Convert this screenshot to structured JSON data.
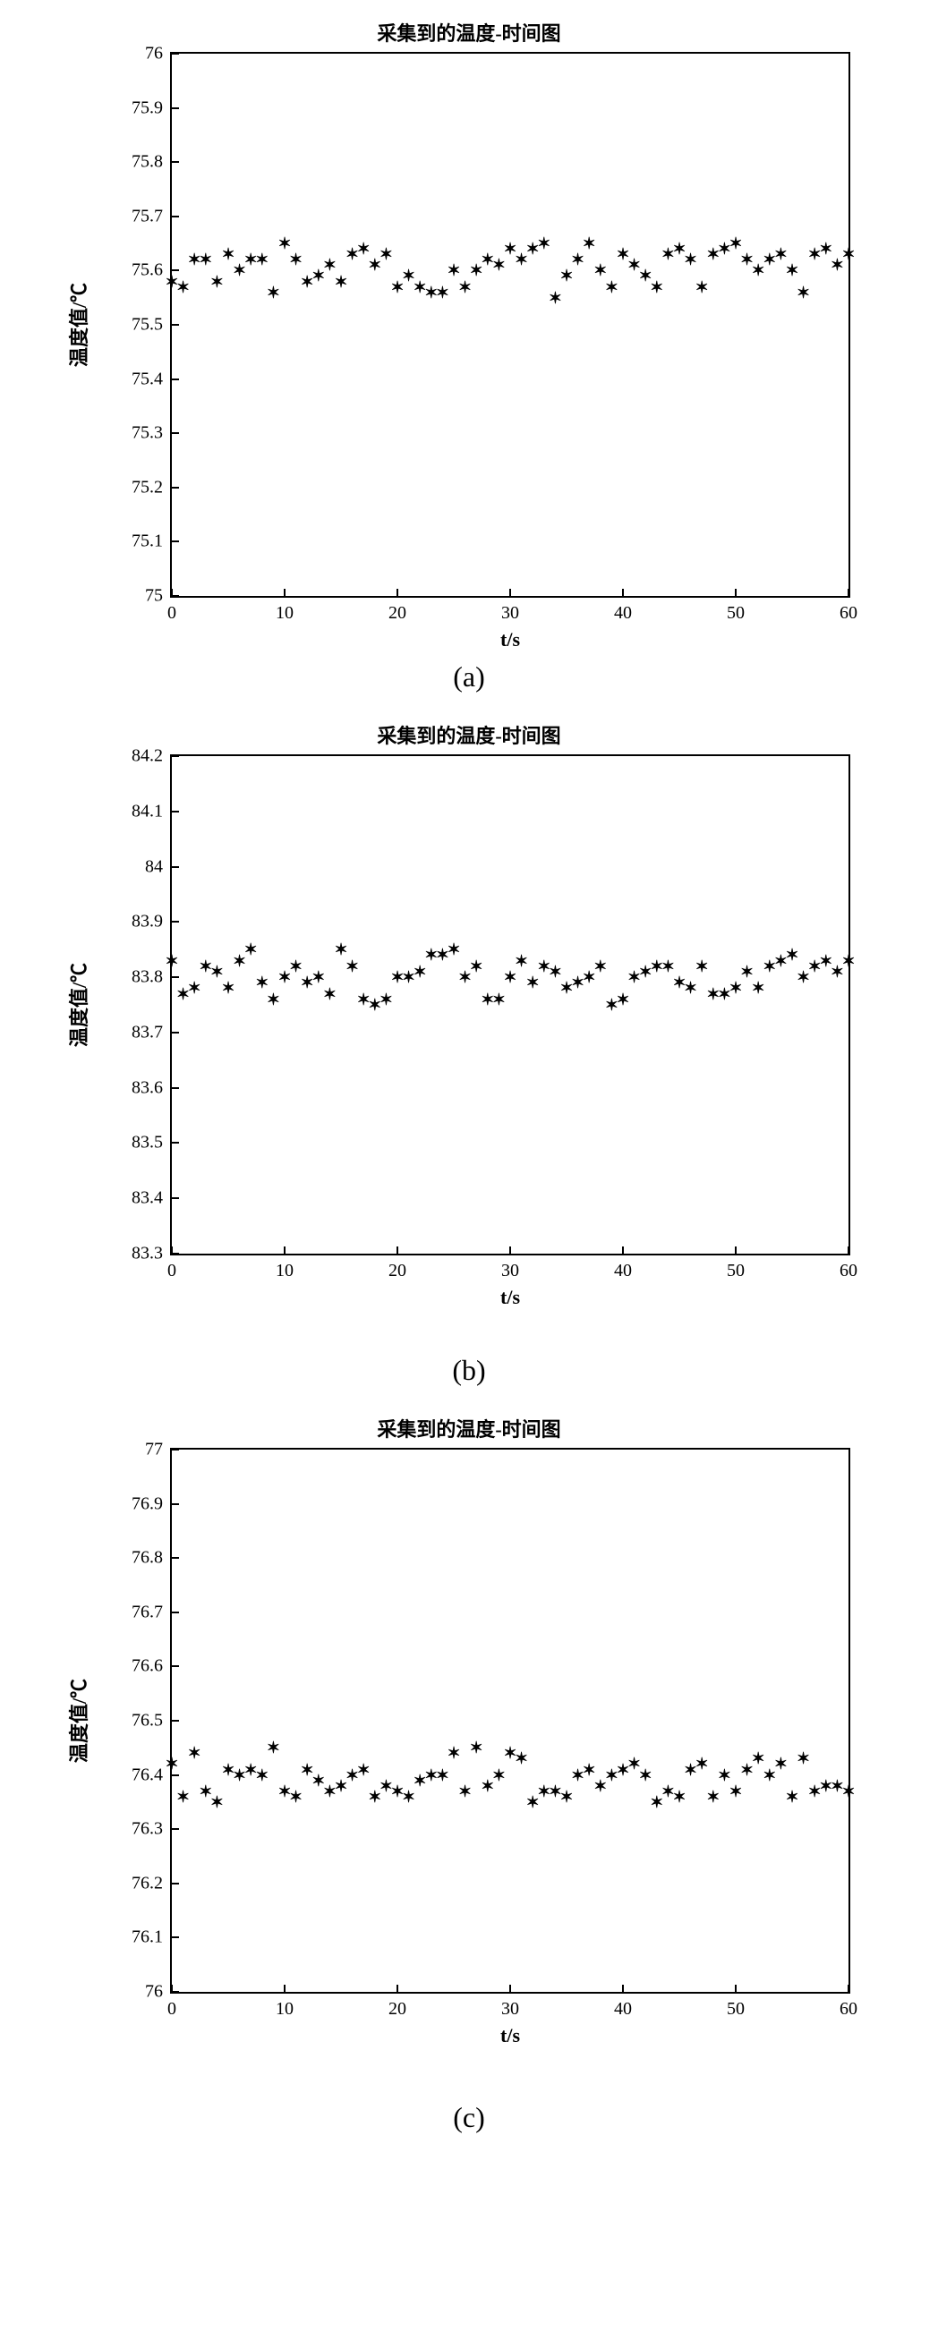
{
  "marker_glyph": "✶",
  "marker_color": "#000000",
  "background_color": "#ffffff",
  "axis_color": "#000000",
  "title_fontsize": 22,
  "tick_fontsize": 20,
  "label_fontsize": 22,
  "sublabel_fontsize": 32,
  "charts": [
    {
      "id": "a",
      "type": "scatter",
      "title": "采集到的温度-时间图",
      "xlabel": "t/s",
      "ylabel": "温度值/℃",
      "xlim": [
        0,
        60
      ],
      "ylim": [
        75,
        76
      ],
      "xticks": [
        0,
        10,
        20,
        30,
        40,
        50,
        60
      ],
      "yticks": [
        75,
        75.1,
        75.2,
        75.3,
        75.4,
        75.5,
        75.6,
        75.7,
        75.8,
        75.9,
        76
      ],
      "frame_w": 760,
      "frame_h": 610,
      "sub": "(a)",
      "x": [
        0,
        1,
        2,
        3,
        4,
        5,
        6,
        7,
        8,
        9,
        10,
        11,
        12,
        13,
        14,
        15,
        16,
        17,
        18,
        19,
        20,
        21,
        22,
        23,
        24,
        25,
        26,
        27,
        28,
        29,
        30,
        31,
        32,
        33,
        34,
        35,
        36,
        37,
        38,
        39,
        40,
        41,
        42,
        43,
        44,
        45,
        46,
        47,
        48,
        49,
        50,
        51,
        52,
        53,
        54,
        55,
        56,
        57,
        58,
        59,
        60
      ],
      "y": [
        75.58,
        75.57,
        75.62,
        75.62,
        75.58,
        75.63,
        75.6,
        75.62,
        75.62,
        75.56,
        75.65,
        75.62,
        75.58,
        75.59,
        75.61,
        75.58,
        75.63,
        75.64,
        75.61,
        75.63,
        75.57,
        75.59,
        75.57,
        75.56,
        75.56,
        75.6,
        75.57,
        75.6,
        75.62,
        75.61,
        75.64,
        75.62,
        75.64,
        75.65,
        75.55,
        75.59,
        75.62,
        75.65,
        75.6,
        75.57,
        75.63,
        75.61,
        75.59,
        75.57,
        75.63,
        75.64,
        75.62,
        75.57,
        75.63,
        75.64,
        75.65,
        75.62,
        75.6,
        75.62,
        75.63,
        75.6,
        75.56,
        75.63,
        75.64,
        75.61,
        75.63
      ]
    },
    {
      "id": "b",
      "type": "scatter",
      "title": "采集到的温度-时间图",
      "xlabel": "t/s",
      "ylabel": "温度值/℃",
      "xlim": [
        0,
        60
      ],
      "ylim": [
        83.3,
        84.2
      ],
      "xticks": [
        0,
        10,
        20,
        30,
        40,
        50,
        60
      ],
      "yticks": [
        83.3,
        83.4,
        83.5,
        83.6,
        83.7,
        83.8,
        83.9,
        84,
        84.1,
        84.2
      ],
      "frame_w": 760,
      "frame_h": 560,
      "sub": "(b)",
      "x": [
        0,
        1,
        2,
        3,
        4,
        5,
        6,
        7,
        8,
        9,
        10,
        11,
        12,
        13,
        14,
        15,
        16,
        17,
        18,
        19,
        20,
        21,
        22,
        23,
        24,
        25,
        26,
        27,
        28,
        29,
        30,
        31,
        32,
        33,
        34,
        35,
        36,
        37,
        38,
        39,
        40,
        41,
        42,
        43,
        44,
        45,
        46,
        47,
        48,
        49,
        50,
        51,
        52,
        53,
        54,
        55,
        56,
        57,
        58,
        59,
        60
      ],
      "y": [
        83.83,
        83.77,
        83.78,
        83.82,
        83.81,
        83.78,
        83.83,
        83.85,
        83.79,
        83.76,
        83.8,
        83.82,
        83.79,
        83.8,
        83.77,
        83.85,
        83.82,
        83.76,
        83.75,
        83.76,
        83.8,
        83.8,
        83.81,
        83.84,
        83.84,
        83.85,
        83.8,
        83.82,
        83.76,
        83.76,
        83.8,
        83.83,
        83.79,
        83.82,
        83.81,
        83.78,
        83.79,
        83.8,
        83.82,
        83.75,
        83.76,
        83.8,
        83.81,
        83.82,
        83.82,
        83.79,
        83.78,
        83.82,
        83.77,
        83.77,
        83.78,
        83.81,
        83.78,
        83.82,
        83.83,
        83.84,
        83.8,
        83.82,
        83.83,
        83.81,
        83.83
      ]
    },
    {
      "id": "c",
      "type": "scatter",
      "title": "采集到的温度-时间图",
      "xlabel": "t/s",
      "ylabel": "温度值/℃",
      "xlim": [
        0,
        60
      ],
      "ylim": [
        76,
        77
      ],
      "xticks": [
        0,
        10,
        20,
        30,
        40,
        50,
        60
      ],
      "yticks": [
        76,
        76.1,
        76.2,
        76.3,
        76.4,
        76.5,
        76.6,
        76.7,
        76.8,
        76.9,
        77
      ],
      "frame_w": 760,
      "frame_h": 610,
      "sub": "(c)",
      "x": [
        0,
        1,
        2,
        3,
        4,
        5,
        6,
        7,
        8,
        9,
        10,
        11,
        12,
        13,
        14,
        15,
        16,
        17,
        18,
        19,
        20,
        21,
        22,
        23,
        24,
        25,
        26,
        27,
        28,
        29,
        30,
        31,
        32,
        33,
        34,
        35,
        36,
        37,
        38,
        39,
        40,
        41,
        42,
        43,
        44,
        45,
        46,
        47,
        48,
        49,
        50,
        51,
        52,
        53,
        54,
        55,
        56,
        57,
        58,
        59,
        60
      ],
      "y": [
        76.42,
        76.36,
        76.44,
        76.37,
        76.35,
        76.41,
        76.4,
        76.41,
        76.4,
        76.45,
        76.37,
        76.36,
        76.41,
        76.39,
        76.37,
        76.38,
        76.4,
        76.41,
        76.36,
        76.38,
        76.37,
        76.36,
        76.39,
        76.4,
        76.4,
        76.44,
        76.37,
        76.45,
        76.38,
        76.4,
        76.44,
        76.43,
        76.35,
        76.37,
        76.37,
        76.36,
        76.4,
        76.41,
        76.38,
        76.4,
        76.41,
        76.42,
        76.4,
        76.35,
        76.37,
        76.36,
        76.41,
        76.42,
        76.36,
        76.4,
        76.37,
        76.41,
        76.43,
        76.4,
        76.42,
        76.36,
        76.43,
        76.37,
        76.38,
        76.38,
        76.37
      ]
    }
  ]
}
